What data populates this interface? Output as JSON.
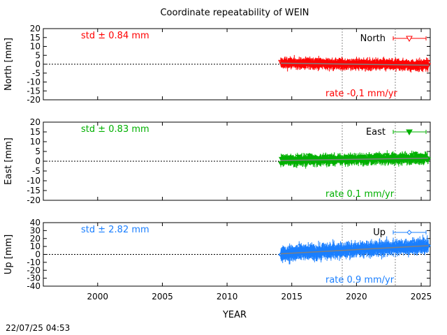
{
  "chart_data": [
    {
      "type": "scatter",
      "title": "Coordinate repeatability of WEIN",
      "ylabel": "North [mm]",
      "ylim": [
        -20,
        20
      ],
      "yticks": [
        -20,
        -15,
        -10,
        -5,
        0,
        5,
        10,
        15,
        20
      ],
      "std_label": "std ± 0.84 mm",
      "rate_label": "rate -0.1 mm/yr",
      "legend": "North",
      "legend_position": "top-right",
      "color": "#ff0000",
      "marker": "open-triangle-down",
      "series": {
        "start": 2014.15,
        "end": 2025.55,
        "intercept": 0.0,
        "rate": -0.1,
        "ref_year": 2020.0,
        "std": 0.84,
        "errbar": 2.0
      }
    },
    {
      "type": "scatter",
      "ylabel": "East [mm]",
      "ylim": [
        -20,
        20
      ],
      "yticks": [
        -20,
        -15,
        -10,
        -5,
        0,
        5,
        10,
        15,
        20
      ],
      "std_label": "std ± 0.83 mm",
      "rate_label": "rate  0.1 mm/yr",
      "legend": "East",
      "legend_position": "top-right",
      "color": "#00b000",
      "marker": "filled-triangle-down",
      "series": {
        "start": 2014.15,
        "end": 2025.55,
        "intercept": 1.0,
        "rate": 0.1,
        "ref_year": 2020.0,
        "std": 0.83,
        "errbar": 1.8
      }
    },
    {
      "type": "scatter",
      "ylabel": "Up [mm]",
      "ylim": [
        -40,
        40
      ],
      "yticks": [
        -40,
        -30,
        -20,
        -10,
        0,
        10,
        20,
        30,
        40
      ],
      "std_label": "std ± 2.82 mm",
      "rate_label": "rate  0.9 mm/yr",
      "legend": "Up",
      "legend_position": "top-right",
      "color": "#1a7fff",
      "marker": "open-diamond",
      "series": {
        "start": 2014.15,
        "end": 2025.55,
        "intercept": 6.0,
        "rate": 0.9,
        "ref_year": 2020.0,
        "std": 2.82,
        "errbar": 6.0
      }
    }
  ],
  "x_axis": {
    "label": "YEAR",
    "xlim": [
      1995.8,
      2025.7
    ],
    "ticks": [
      2000,
      2005,
      2010,
      2015,
      2020,
      2025
    ],
    "vlines": [
      2018.9,
      2023.0
    ]
  },
  "timestamp": "22/07/25 04:53"
}
